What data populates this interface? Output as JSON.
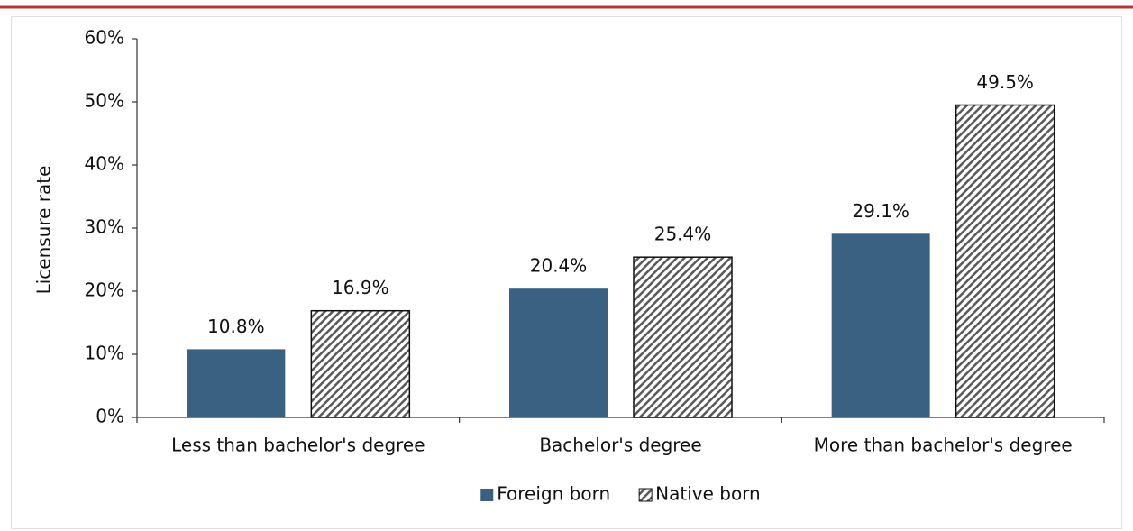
{
  "chart_data": {
    "type": "bar",
    "y_label": "Licensure rate",
    "categories": [
      "Less than bachelor's degree",
      "Bachelor's degree",
      "More than bachelor's degree"
    ],
    "series": [
      {
        "name": "Foreign born",
        "color": "#3a6182",
        "values": [
          10.8,
          20.4,
          29.1
        ],
        "value_labels": [
          "10.8%",
          "20.4%",
          "29.1%"
        ]
      },
      {
        "name": "Native born",
        "color": "#595959",
        "pattern": "hatch",
        "values": [
          16.9,
          25.4,
          49.5
        ],
        "value_labels": [
          "16.9%",
          "25.4%",
          "49.5%"
        ]
      }
    ],
    "ylim": [
      0,
      60
    ],
    "yticks": [
      {
        "value": 0,
        "label": "0%"
      },
      {
        "value": 10,
        "label": "10%"
      },
      {
        "value": 20,
        "label": "20%"
      },
      {
        "value": 30,
        "label": "30%"
      },
      {
        "value": 40,
        "label": "40%"
      },
      {
        "value": 50,
        "label": "50%"
      },
      {
        "value": 60,
        "label": "60%"
      }
    ],
    "legend": "bottom",
    "grid": false
  }
}
